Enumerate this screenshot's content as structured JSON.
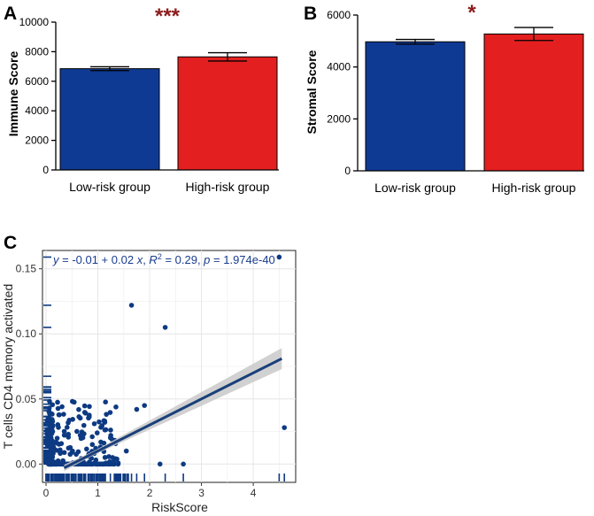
{
  "colors": {
    "low": "#0f3a94",
    "high": "#e41f1f",
    "sig": "#8b1c1c",
    "point": "#0d3a82",
    "band": "#c9c9c9",
    "grid": "#e6e6e6"
  },
  "chart_data": [
    {
      "panel": "A",
      "type": "bar",
      "categories": [
        "Low-risk group",
        "High-risk group"
      ],
      "values": [
        6850,
        7650
      ],
      "errors": [
        130,
        280
      ],
      "ylabel": "Immune Score",
      "ylim": [
        0,
        10000
      ],
      "yticks": [
        "0",
        "2000",
        "4000",
        "6000",
        "8000",
        "10000"
      ],
      "significance": "***"
    },
    {
      "panel": "B",
      "type": "bar",
      "categories": [
        "Low-risk group",
        "High-risk group"
      ],
      "values": [
        4970,
        5270
      ],
      "errors": [
        90,
        250
      ],
      "ylabel": "Stromal Score",
      "ylim": [
        0,
        6000
      ],
      "yticks": [
        "0",
        "2000",
        "4000",
        "6000"
      ],
      "significance": "*"
    },
    {
      "panel": "C",
      "type": "scatter",
      "xlabel": "RiskScore",
      "ylabel": "T cells CD4 memory activated",
      "xlim": [
        0,
        4.75
      ],
      "ylim": [
        -0.01,
        0.16
      ],
      "xticks": [
        "0",
        "1",
        "2",
        "3",
        "4"
      ],
      "yticks": [
        "0.00",
        "0.05",
        "0.10",
        "0.15"
      ],
      "regression": {
        "intercept": -0.01,
        "slope": 0.02,
        "x_range": [
          0.35,
          4.55
        ]
      },
      "annotation": {
        "y_sym": "y",
        "eq_mid": " = -0.01 + 0.02  ",
        "x_sym": "x",
        "r2_sym": "R",
        "r2_exp": "2",
        "r2_val": " = 0.29,  ",
        "p_sym": "p",
        "p_val": " = 1.974e-40"
      },
      "outliers": [
        [
          1.65,
          0.122
        ],
        [
          2.3,
          0.105
        ],
        [
          4.5,
          0.159
        ],
        [
          4.6,
          0.028
        ],
        [
          2.65,
          0.0
        ],
        [
          1.25,
          0.022
        ],
        [
          1.55,
          0.01
        ],
        [
          1.75,
          0.042
        ],
        [
          1.9,
          0.045
        ],
        [
          2.2,
          0.0
        ]
      ]
    }
  ]
}
